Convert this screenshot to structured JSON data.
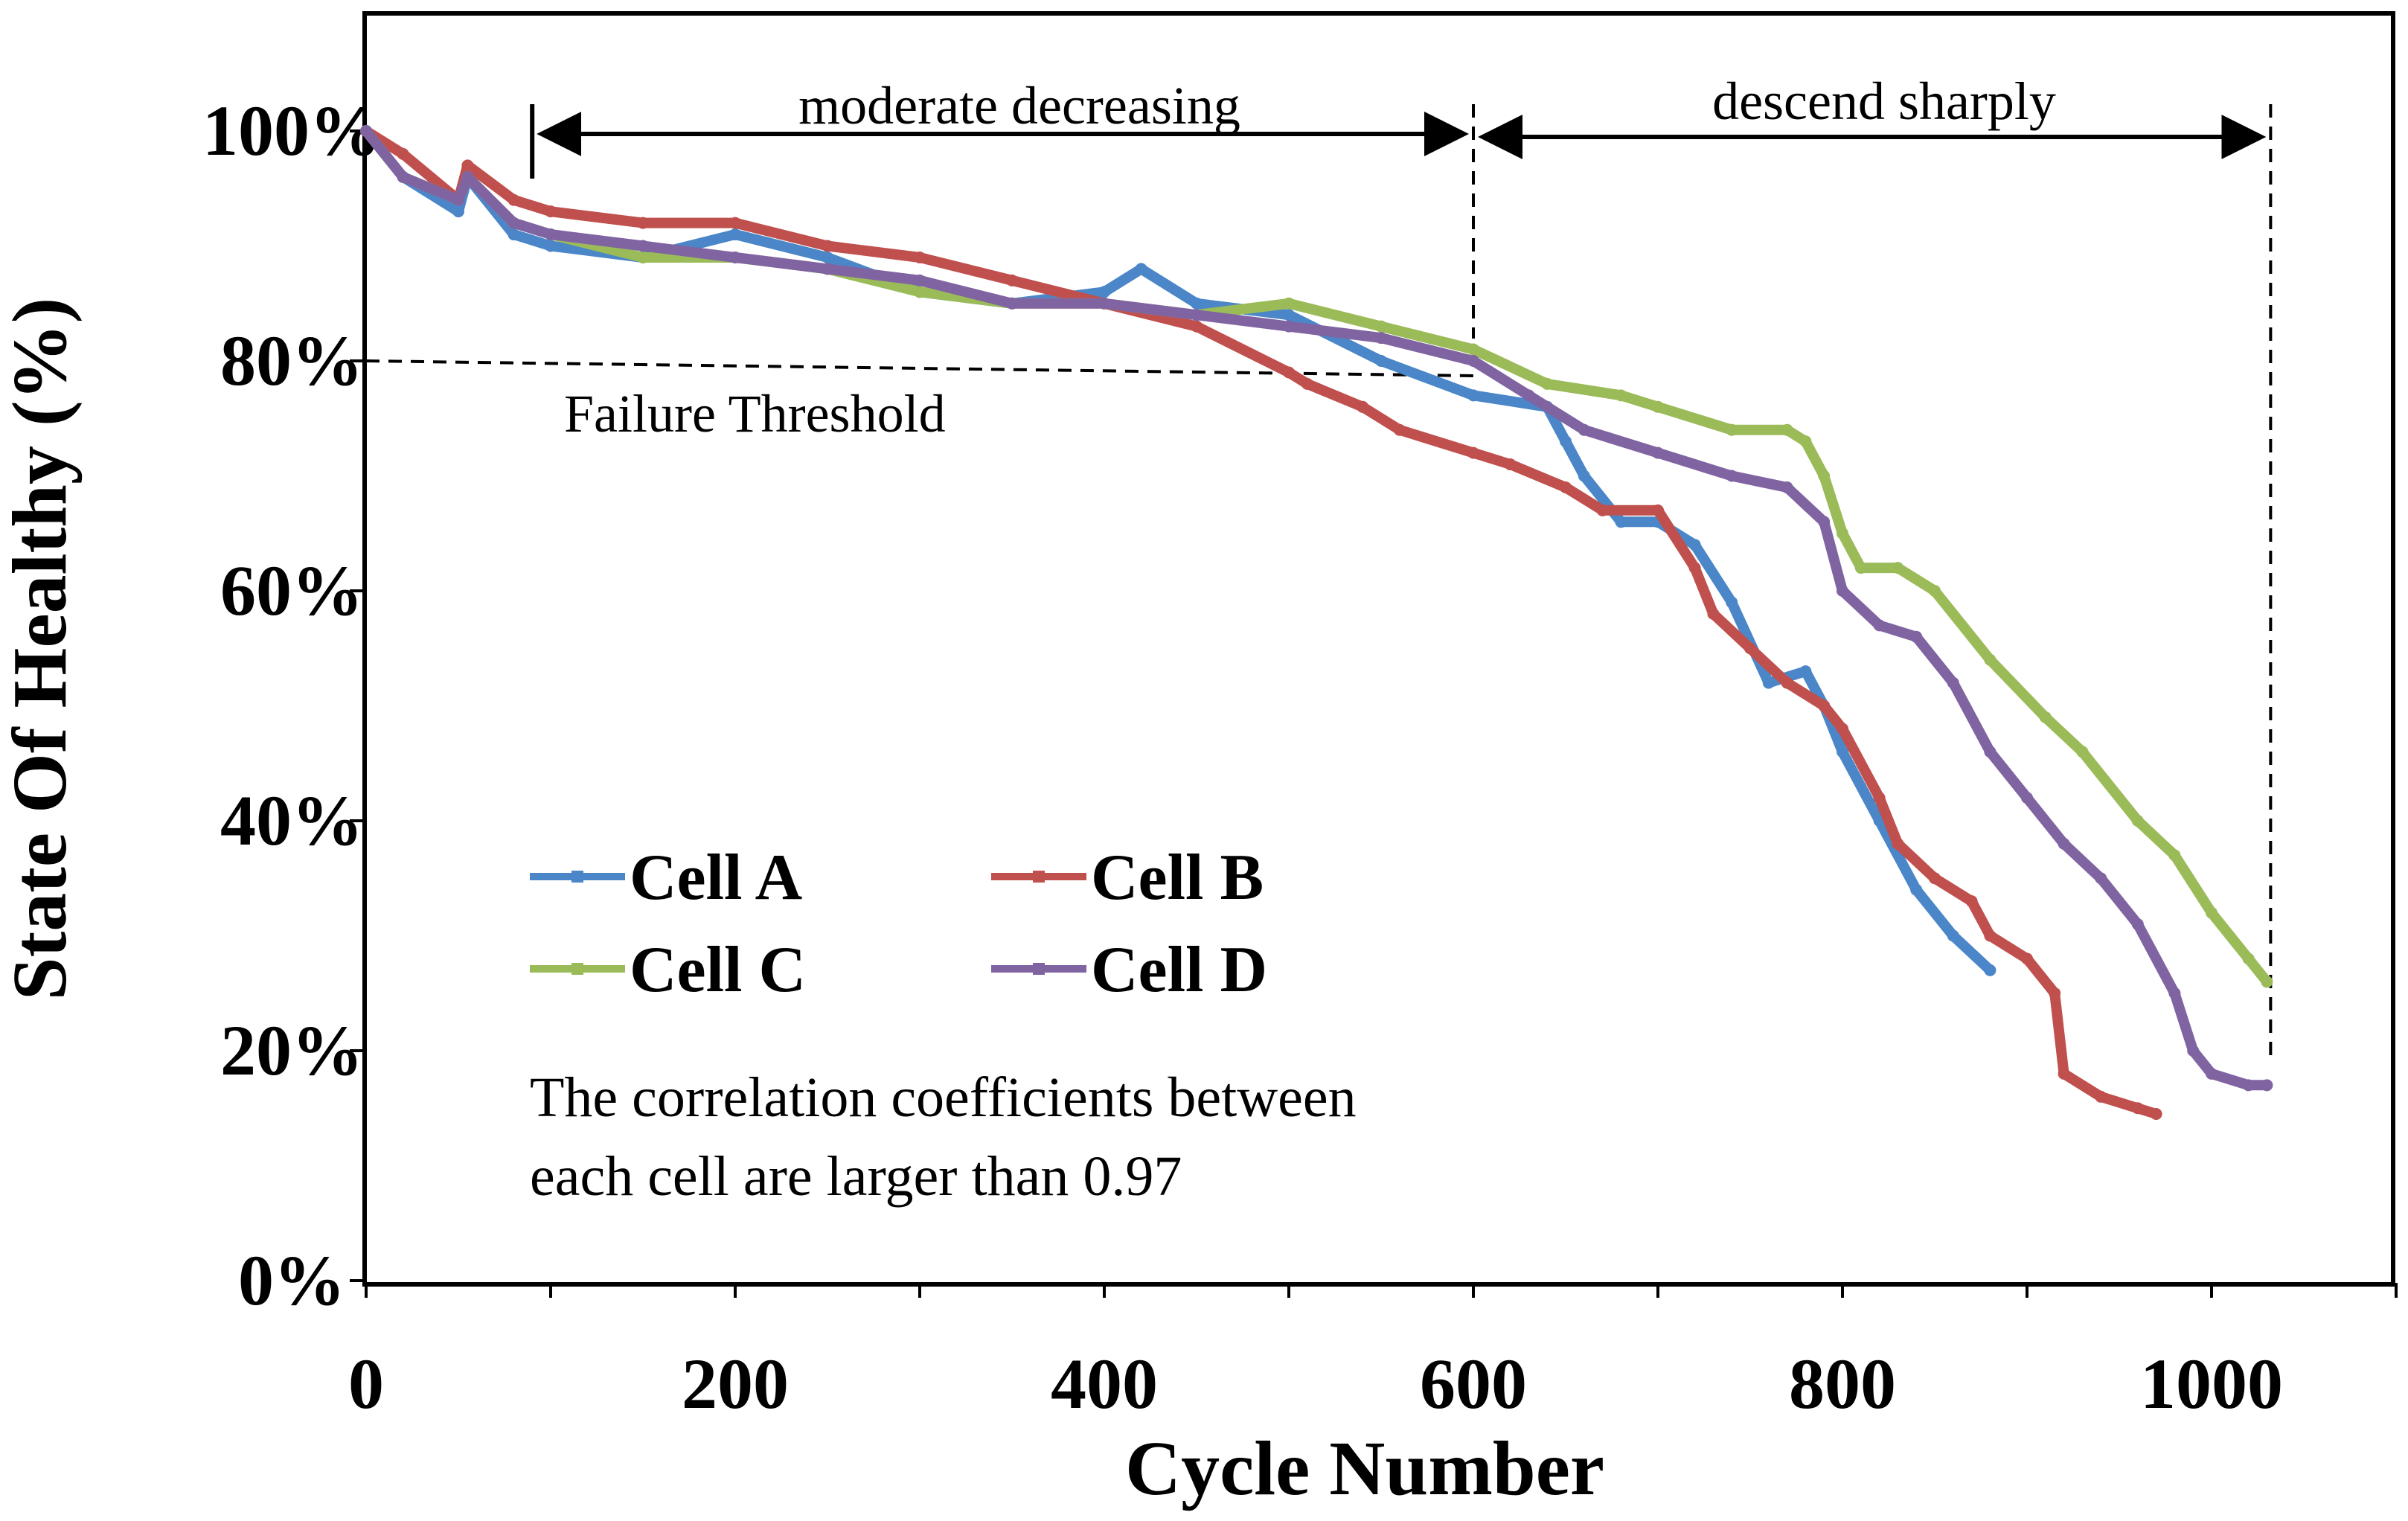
{
  "chart_data": {
    "type": "line",
    "title": "",
    "xlabel": "Cycle Number",
    "ylabel": "State Of Healthy (%)",
    "xlim": [
      0,
      1100
    ],
    "ylim": [
      0,
      110
    ],
    "xticks": [
      0,
      200,
      400,
      600,
      800,
      1000
    ],
    "xtick_labels": [
      "0",
      "200",
      "400",
      "600",
      "800",
      "1000"
    ],
    "yticks": [
      0,
      20,
      40,
      60,
      80,
      100
    ],
    "ytick_labels": [
      "0%",
      "20%",
      "40%",
      "60%",
      "80%",
      "100%"
    ],
    "grid": false,
    "legend_position": "lower-left",
    "series": [
      {
        "name": "Cell A",
        "color": "#4a86c8",
        "x": [
          0,
          20,
          50,
          55,
          80,
          100,
          150,
          200,
          250,
          300,
          350,
          400,
          420,
          450,
          500,
          550,
          600,
          640,
          650,
          660,
          680,
          700,
          720,
          740,
          760,
          780,
          790,
          800,
          820,
          840,
          860,
          880
        ],
        "y": [
          100,
          96,
          93,
          96,
          91,
          90,
          89,
          91,
          89,
          86,
          85,
          86,
          88,
          85,
          84,
          80,
          77,
          76,
          73,
          70,
          66,
          66,
          64,
          59,
          52,
          53,
          50,
          46,
          40,
          34,
          30,
          27
        ]
      },
      {
        "name": "Cell B",
        "color": "#c0504d",
        "x": [
          0,
          20,
          50,
          55,
          80,
          100,
          150,
          200,
          250,
          300,
          350,
          400,
          450,
          500,
          510,
          540,
          560,
          600,
          620,
          650,
          670,
          700,
          720,
          730,
          750,
          770,
          790,
          800,
          820,
          830,
          850,
          870,
          880,
          900,
          915,
          920,
          940,
          960,
          970
        ],
        "y": [
          100,
          98,
          94,
          97,
          94,
          93,
          92,
          92,
          90,
          89,
          87,
          85,
          83,
          79,
          78,
          76,
          74,
          72,
          71,
          69,
          67,
          67,
          62,
          58,
          55,
          52,
          50,
          48,
          42,
          38,
          35,
          33,
          30,
          28,
          25,
          18,
          16,
          15,
          14.5
        ]
      },
      {
        "name": "Cell C",
        "color": "#9bbb59",
        "x": [
          0,
          20,
          50,
          55,
          80,
          100,
          150,
          200,
          250,
          300,
          350,
          400,
          450,
          500,
          550,
          600,
          640,
          680,
          700,
          740,
          770,
          780,
          790,
          800,
          810,
          830,
          850,
          880,
          910,
          930,
          960,
          980,
          1000,
          1020,
          1030
        ],
        "y": [
          100,
          96,
          94,
          96,
          92,
          91,
          89,
          89,
          88,
          86,
          85,
          85,
          84,
          85,
          83,
          81,
          78,
          77,
          76,
          74,
          74,
          73,
          70,
          65,
          62,
          62,
          60,
          54,
          49,
          46,
          40,
          37,
          32,
          28,
          26
        ]
      },
      {
        "name": "Cell D",
        "color": "#8064a2",
        "x": [
          0,
          20,
          50,
          55,
          80,
          100,
          150,
          200,
          250,
          300,
          350,
          400,
          450,
          500,
          550,
          600,
          630,
          660,
          700,
          740,
          770,
          790,
          800,
          820,
          840,
          860,
          880,
          900,
          920,
          940,
          960,
          980,
          990,
          1000,
          1020,
          1030
        ],
        "y": [
          100,
          96,
          94,
          96,
          92,
          91,
          90,
          89,
          88,
          87,
          85,
          85,
          84,
          83,
          82,
          80,
          77,
          74,
          72,
          70,
          69,
          66,
          60,
          57,
          56,
          52,
          46,
          42,
          38,
          35,
          31,
          25,
          20,
          18,
          17,
          17
        ]
      }
    ],
    "failure_threshold": {
      "y": 80,
      "x_end": 600,
      "label": "Failure Threshold"
    },
    "regions": [
      {
        "label": "moderate decreasing",
        "x_start": 90,
        "x_end": 600
      },
      {
        "label": "descend sharply",
        "x_start": 600,
        "x_end": 1032
      }
    ],
    "annotation_lines": [
      "The correlation coefficients between",
      "each cell are larger than 0.97"
    ]
  }
}
